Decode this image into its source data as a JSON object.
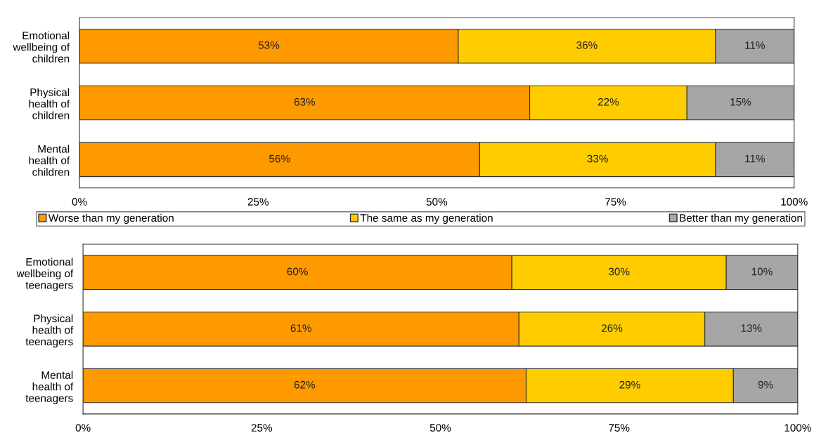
{
  "chart_data": [
    {
      "type": "bar",
      "orientation": "horizontal",
      "stacked": true,
      "legend": "bottom",
      "grid": false,
      "categories": [
        "Emotional\nwellbeing of\nchildren",
        "Physical\nhealth of\nchildren",
        "Mental\nhealth of\nchildren"
      ],
      "series": [
        {
          "name": "Worse than my generation",
          "color": "#ff9900",
          "values": [
            53,
            63,
            56
          ],
          "value_labels": [
            "53%",
            "63%",
            "56%"
          ]
        },
        {
          "name": "The same as my generation",
          "color": "#ffcc00",
          "values": [
            36,
            22,
            33
          ],
          "value_labels": [
            "36%",
            "22%",
            "33%"
          ]
        },
        {
          "name": "Better than my generation",
          "color": "#a6a6a6",
          "values": [
            11,
            15,
            11
          ],
          "value_labels": [
            "11%",
            "15%",
            "11%"
          ]
        }
      ],
      "xlim": [
        0,
        100
      ],
      "xticks": [
        {
          "value": 0,
          "label": "0%"
        },
        {
          "value": 25,
          "label": "25%"
        },
        {
          "value": 50,
          "label": "50%"
        },
        {
          "value": 75,
          "label": "75%"
        },
        {
          "value": 100,
          "label": "100%"
        }
      ]
    },
    {
      "type": "bar",
      "orientation": "horizontal",
      "stacked": true,
      "grid": false,
      "categories": [
        "Emotional\nwellbeing of\nteenagers",
        "Physical\nhealth of\nteenagers",
        "Mental\nhealth of\nteenagers"
      ],
      "series": [
        {
          "color": "#ff9900",
          "values": [
            60,
            61,
            62
          ],
          "value_labels": [
            "60%",
            "61%",
            "62%"
          ]
        },
        {
          "color": "#ffcc00",
          "values": [
            30,
            26,
            29
          ],
          "value_labels": [
            "30%",
            "26%",
            "29%"
          ]
        },
        {
          "color": "#a6a6a6",
          "values": [
            10,
            13,
            9
          ],
          "value_labels": [
            "10%",
            "13%",
            "9%"
          ]
        }
      ],
      "xlim": [
        0,
        100
      ],
      "xticks": [
        {
          "value": 0,
          "label": "0%"
        },
        {
          "value": 25,
          "label": "25%"
        },
        {
          "value": 50,
          "label": "50%"
        },
        {
          "value": 75,
          "label": "75%"
        },
        {
          "value": 100,
          "label": "100%"
        }
      ]
    }
  ]
}
